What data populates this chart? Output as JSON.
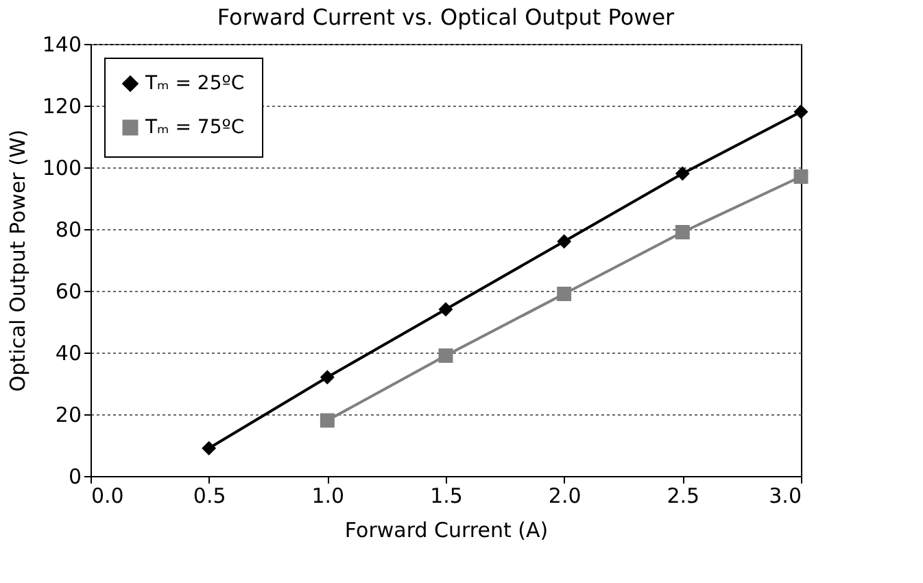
{
  "chart_data": {
    "type": "line",
    "title": "Forward Current vs. Optical Output Power",
    "xlabel": "Forward Current (A)",
    "ylabel": "Optical Output Power (W)",
    "series": [
      {
        "name": "Tₘ = 25ºC",
        "color": "#000000",
        "marker": "diamond",
        "x": [
          0.5,
          1.0,
          1.5,
          2.0,
          2.5,
          3.0
        ],
        "values": [
          9,
          32,
          54,
          76,
          98,
          118
        ]
      },
      {
        "name": "Tₘ = 75ºC",
        "color": "#808080",
        "marker": "square",
        "x": [
          1.0,
          1.5,
          2.0,
          2.5,
          3.0
        ],
        "values": [
          18,
          39,
          59,
          79,
          97
        ]
      }
    ],
    "xlim": [
      0,
      3
    ],
    "xticks": [
      {
        "value": 0,
        "label": "0.0"
      },
      {
        "value": 0.5,
        "label": "0.5"
      },
      {
        "value": 1,
        "label": "1.0"
      },
      {
        "value": 1.5,
        "label": "1.5"
      },
      {
        "value": 2,
        "label": "2.0"
      },
      {
        "value": 2.5,
        "label": "2.5"
      },
      {
        "value": 3,
        "label": "3.0"
      }
    ],
    "ylim": [
      0,
      140
    ],
    "yticks": [
      0,
      20,
      40,
      60,
      80,
      100,
      120,
      140
    ],
    "grid": "y",
    "legend": "top left",
    "line_style": "solid"
  }
}
